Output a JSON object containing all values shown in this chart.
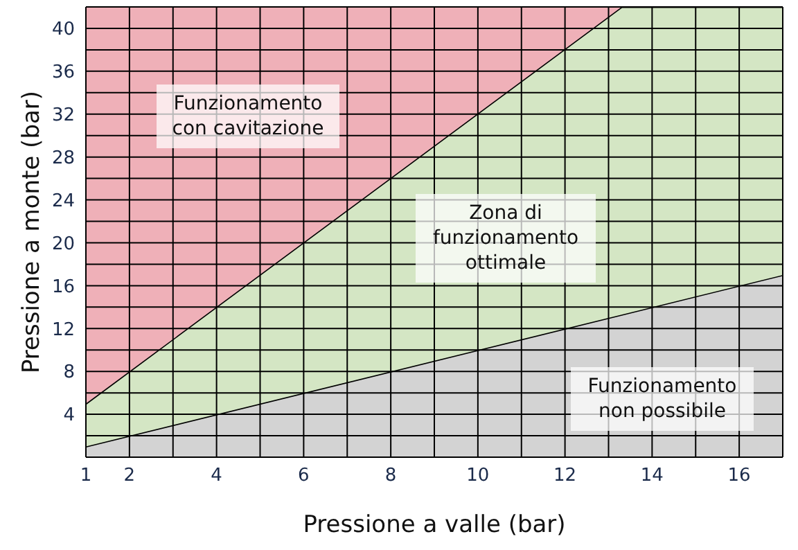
{
  "chart_data": {
    "type": "area",
    "xlabel": "Pressione a valle (bar)",
    "ylabel": "Pressione a monte (bar)",
    "annotations": [
      "Funzionamento con cavitazione",
      "Zona di funzionamento ottimale",
      "Funzionamento non possibile"
    ],
    "series": [
      {
        "color": "#d3d3d3",
        "x": [
          1,
          13.3,
          17
        ],
        "values": [
          1,
          13.3,
          17
        ]
      },
      {
        "color": "#d4e6c4",
        "x": [
          1,
          13.3,
          17
        ],
        "values": [
          4,
          28.7,
          25
        ]
      },
      {
        "color": "#efb0b8",
        "x": [
          1,
          13.3,
          17
        ],
        "values": [
          37,
          0,
          0
        ]
      }
    ],
    "xlim": [
      1,
      17
    ],
    "ylim": [
      0,
      42
    ],
    "xticks": [
      1,
      2,
      {
        "value": 3,
        "label": null
      },
      4,
      {
        "value": 5,
        "label": null
      },
      6,
      {
        "value": 7,
        "label": null
      },
      8,
      {
        "value": 9,
        "label": null
      },
      10,
      {
        "value": 11,
        "label": null
      },
      12,
      {
        "value": 13,
        "label": null
      },
      14,
      {
        "value": 15,
        "label": null
      },
      16,
      {
        "value": 17,
        "label": null
      }
    ],
    "yticks": [
      {
        "value": 2,
        "label": null
      },
      4,
      {
        "value": 6,
        "label": null
      },
      8,
      {
        "value": 10,
        "label": null
      },
      12,
      {
        "value": 14,
        "label": null
      },
      16,
      {
        "value": 18,
        "label": null
      },
      20,
      {
        "value": 22,
        "label": null
      },
      24,
      {
        "value": 26,
        "label": null
      },
      28,
      {
        "value": 30,
        "label": null
      },
      32,
      {
        "value": 34,
        "label": null
      },
      36,
      {
        "value": 38,
        "label": null
      },
      40,
      {
        "value": 42,
        "label": null
      }
    ],
    "grid": true,
    "stacked": true
  }
}
